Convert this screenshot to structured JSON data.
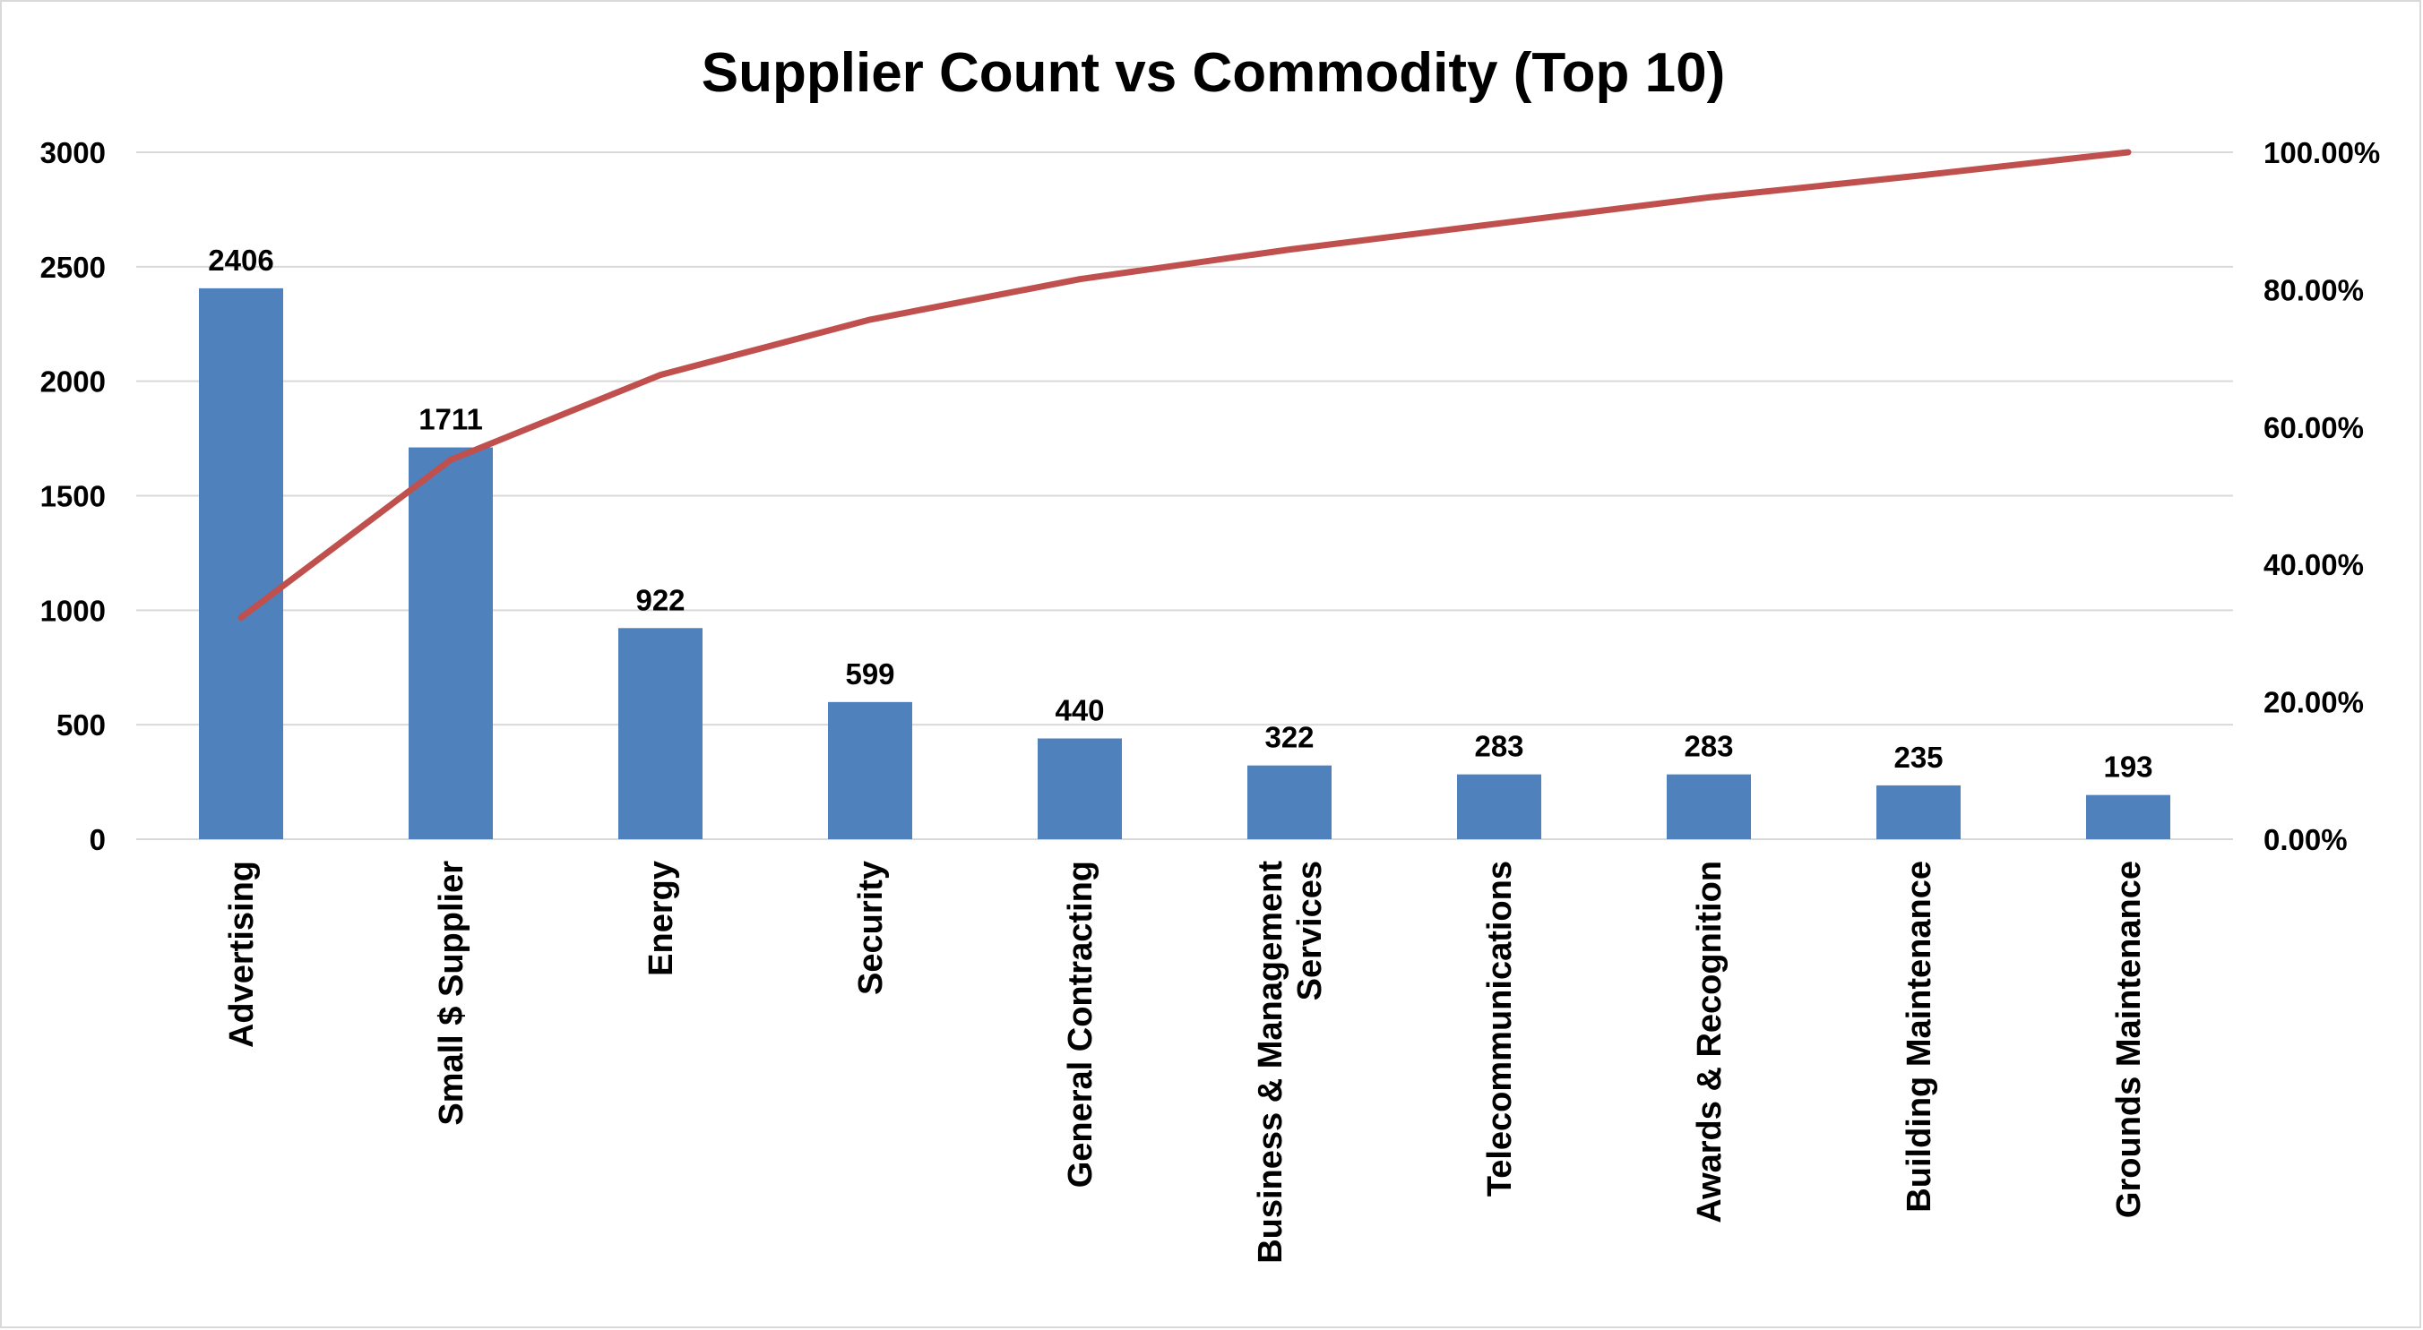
{
  "chart_data": {
    "type": "bar",
    "title": "Supplier Count vs Commodity (Top 10)",
    "categories": [
      [
        "Advertising"
      ],
      [
        "Small $ Supplier"
      ],
      [
        "Energy"
      ],
      [
        "Security"
      ],
      [
        "General Contracting"
      ],
      [
        "Business & Management",
        "Services"
      ],
      [
        "Telecommunications"
      ],
      [
        "Awards & Recognition"
      ],
      [
        "Building Maintenance"
      ],
      [
        "Grounds Maintenance"
      ]
    ],
    "series": [
      {
        "type": "bar",
        "axis": "left",
        "color": "#4f81bd",
        "values": [
          2406,
          1711,
          922,
          599,
          440,
          322,
          283,
          283,
          235,
          193
        ],
        "data_labels": [
          "2406",
          "1711",
          "922",
          "599",
          "440",
          "322",
          "283",
          "283",
          "235",
          "193"
        ]
      },
      {
        "type": "line",
        "axis": "right",
        "color": "#c0504d",
        "values": [
          0.3227,
          0.5523,
          0.6759,
          0.7563,
          0.8153,
          0.8584,
          0.8964,
          0.9343,
          0.9659,
          1.0
        ]
      }
    ],
    "y_left": {
      "min": 0,
      "max": 3000,
      "ticks": [
        "0",
        "500",
        "1000",
        "1500",
        "2000",
        "2500",
        "3000"
      ]
    },
    "y_right": {
      "min": 0,
      "max": 1,
      "ticks": [
        "0.00%",
        "20.00%",
        "40.00%",
        "60.00%",
        "80.00%",
        "100.00%"
      ]
    },
    "grid": true,
    "legend": "none"
  }
}
